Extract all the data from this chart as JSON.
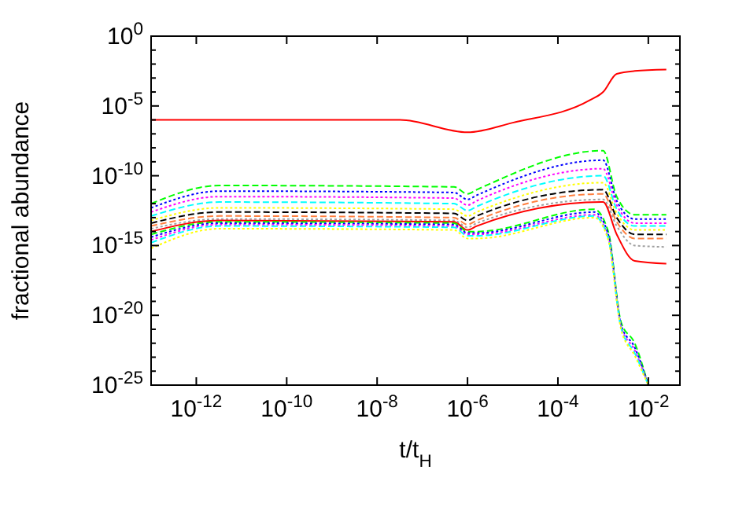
{
  "chart_data": {
    "type": "line",
    "xlabel": "t/t$_{H}$",
    "ylabel": "fractional abundance",
    "log": "xy",
    "grid": false,
    "xlim": [
      1e-13,
      0.05
    ],
    "ylim": [
      1e-25,
      1
    ],
    "xticks": [
      {
        "value": 1e-12,
        "label": "10$^{-12}$"
      },
      {
        "value": 1e-10,
        "label": "10$^{-10}$"
      },
      {
        "value": 1e-08,
        "label": "10$^{-8}$"
      },
      {
        "value": 1e-06,
        "label": "10$^{-6}$"
      },
      {
        "value": 0.0001,
        "label": "10$^{-4}$"
      },
      {
        "value": 0.01,
        "label": "10$^{-2}$"
      }
    ],
    "yticks": [
      {
        "value": 1e-25,
        "label": "10$^{-25}$"
      },
      {
        "value": 1e-24,
        "label": null
      },
      {
        "value": 1e-23,
        "label": null
      },
      {
        "value": 1e-22,
        "label": null
      },
      {
        "value": 1e-21,
        "label": null
      },
      {
        "value": 1e-20,
        "label": "10$^{-20}$"
      },
      {
        "value": 1e-19,
        "label": null
      },
      {
        "value": 1e-18,
        "label": null
      },
      {
        "value": 1e-17,
        "label": null
      },
      {
        "value": 1e-16,
        "label": null
      },
      {
        "value": 1e-15,
        "label": "10$^{-15}$"
      },
      {
        "value": 1e-14,
        "label": null
      },
      {
        "value": 1e-13,
        "label": null
      },
      {
        "value": 1e-12,
        "label": null
      },
      {
        "value": 1e-11,
        "label": null
      },
      {
        "value": 1e-10,
        "label": "10$^{-10}$"
      },
      {
        "value": 1e-09,
        "label": null
      },
      {
        "value": 1e-08,
        "label": null
      },
      {
        "value": 1e-07,
        "label": null
      },
      {
        "value": 1e-06,
        "label": null
      },
      {
        "value": 1e-05,
        "label": "10$^{-5}$"
      },
      {
        "value": 0.0001,
        "label": null
      },
      {
        "value": 0.001,
        "label": null
      },
      {
        "value": 0.01,
        "label": null
      },
      {
        "value": 0.1,
        "label": null
      },
      {
        "value": 1,
        "label": "10$^{0}$"
      }
    ],
    "series": [
      {
        "color": "#ff0000",
        "line_style": "solid",
        "x": [
          1e-13,
          3.2e-08,
          1e-06,
          1e-05,
          0.0005,
          0.001,
          0.002,
          0.005,
          0.025
        ],
        "values": [
          1e-06,
          1e-06,
          1.3e-07,
          6.3e-07,
          2.5e-05,
          0.0001,
          0.002,
          0.0032,
          0.004
        ]
      },
      {
        "color": "#00ff00",
        "line_style": "dashed",
        "x": [
          1e-13,
          3.2e-12,
          5e-07,
          1e-06,
          1.6e-06,
          0.001,
          0.002,
          0.005,
          0.025
        ],
        "values": [
          1e-12,
          2e-11,
          1.6e-11,
          5e-12,
          1e-11,
          6.3e-09,
          3.2e-12,
          1.6e-13,
          1.6e-13
        ]
      },
      {
        "color": "#0000ff",
        "line_style": "dotted",
        "x": [
          1e-13,
          3.2e-12,
          5e-07,
          1e-06,
          1.6e-06,
          0.001,
          0.002,
          0.005,
          0.025
        ],
        "values": [
          5e-13,
          7.9e-12,
          6.3e-12,
          2e-12,
          4e-12,
          1.3e-09,
          1.6e-12,
          7.9e-14,
          7.9e-14
        ]
      },
      {
        "color": "#ff00ff",
        "line_style": "dotted",
        "x": [
          1e-13,
          3.2e-12,
          5e-07,
          1e-06,
          1.6e-06,
          0.001,
          0.002,
          0.005,
          0.025
        ],
        "values": [
          2.5e-13,
          3.2e-12,
          2.5e-12,
          7.9e-13,
          1.6e-12,
          3.2e-10,
          7.9e-13,
          4e-14,
          4e-14
        ]
      },
      {
        "color": "#00ffff",
        "line_style": "dashed",
        "x": [
          1e-13,
          3.2e-12,
          5e-07,
          1e-06,
          1.6e-06,
          0.001,
          0.002,
          0.005,
          0.025
        ],
        "values": [
          1.3e-13,
          1.3e-12,
          1e-12,
          3.2e-13,
          6.3e-13,
          1e-10,
          4e-13,
          2.5e-14,
          2.5e-14
        ]
      },
      {
        "color": "#ffff00",
        "line_style": "dotted",
        "x": [
          1e-13,
          3.2e-12,
          5e-07,
          1e-06,
          1.6e-06,
          0.001,
          0.002,
          0.005,
          0.025
        ],
        "values": [
          6.3e-14,
          5e-13,
          4e-13,
          1.3e-13,
          2.5e-13,
          3.2e-11,
          2e-13,
          1.3e-14,
          1.3e-14
        ]
      },
      {
        "color": "#000000",
        "line_style": "dashed",
        "x": [
          1e-13,
          3.2e-12,
          5e-07,
          1e-06,
          1.6e-06,
          0.001,
          0.002,
          0.005,
          0.025
        ],
        "values": [
          4e-14,
          2.5e-13,
          2e-13,
          6.3e-14,
          1.3e-13,
          1e-11,
          1e-13,
          6.3e-15,
          6.3e-15
        ]
      },
      {
        "color": "#ff8040",
        "line_style": "dashed",
        "x": [
          1e-13,
          3.2e-12,
          5e-07,
          1e-06,
          1.6e-06,
          0.001,
          0.002,
          0.005,
          0.025
        ],
        "values": [
          2.5e-14,
          1.3e-13,
          1e-13,
          3.2e-14,
          6.3e-14,
          5e-12,
          5e-14,
          3.2e-15,
          3.2e-15
        ]
      },
      {
        "color": "#a0a0a0",
        "line_style": "dotted",
        "x": [
          1e-13,
          3.2e-12,
          5e-07,
          1e-06,
          1.6e-06,
          0.001,
          0.002,
          0.005,
          0.025
        ],
        "values": [
          1.6e-14,
          7.9e-14,
          6.3e-14,
          2e-14,
          4e-14,
          2e-12,
          2.5e-14,
          1e-15,
          7.9e-16
        ]
      },
      {
        "color": "#ff0000",
        "line_style": "solid",
        "x": [
          1e-13,
          3.2e-12,
          5e-07,
          1e-06,
          1.6e-06,
          0.001,
          0.002,
          0.005,
          0.025
        ],
        "values": [
          1e-14,
          6.3e-14,
          5e-14,
          1.3e-14,
          2.5e-14,
          1.3e-12,
          6.3e-15,
          7.9e-17,
          5e-17
        ]
      },
      {
        "color": "#00ff00",
        "line_style": "dashed",
        "x": [
          1e-13,
          3.2e-12,
          5e-07,
          1e-06,
          1.6e-06,
          0.00063,
          0.0013,
          0.0025,
          0.005,
          0.01
        ],
        "values": [
          6.3e-15,
          5e-14,
          4e-14,
          1e-14,
          1e-14,
          4e-13,
          1e-14,
          3.2e-21,
          1e-22,
          1e-25
        ]
      },
      {
        "color": "#0000ff",
        "line_style": "dotted",
        "x": [
          1e-13,
          3.2e-12,
          5e-07,
          1e-06,
          1.6e-06,
          0.00063,
          0.0013,
          0.0025,
          0.005,
          0.01
        ],
        "values": [
          4e-15,
          4e-14,
          3.2e-14,
          7.9e-15,
          7.9e-15,
          2.5e-13,
          6.3e-15,
          2e-21,
          5e-23,
          1e-25
        ]
      },
      {
        "color": "#ff00ff",
        "line_style": "dotted",
        "x": [
          1e-13,
          3.2e-12,
          5e-07,
          1e-06,
          1.6e-06,
          0.00063,
          0.0013,
          0.0025,
          0.005,
          0.01
        ],
        "values": [
          2.5e-15,
          3.2e-14,
          2.5e-14,
          6.3e-15,
          6.3e-15,
          1.6e-13,
          4e-15,
          1.6e-21,
          3.2e-23,
          1e-25
        ]
      },
      {
        "color": "#00ffff",
        "line_style": "dashed",
        "x": [
          1e-13,
          3.2e-12,
          5e-07,
          1e-06,
          1.6e-06,
          0.00063,
          0.0013,
          0.0025,
          0.005,
          0.01
        ],
        "values": [
          1.6e-15,
          2.5e-14,
          2e-14,
          5e-15,
          5e-15,
          1.3e-13,
          3.2e-15,
          1.3e-21,
          2e-23,
          1e-25
        ]
      },
      {
        "color": "#ffff00",
        "line_style": "dotted",
        "x": [
          1e-13,
          3.2e-12,
          5e-07,
          1e-06,
          1.6e-06,
          0.00063,
          0.0013,
          0.0025,
          0.005,
          0.01
        ],
        "values": [
          6.3e-16,
          1.6e-14,
          1.3e-14,
          3.2e-15,
          3.2e-15,
          1e-13,
          2.5e-15,
          1e-21,
          1.3e-23,
          1e-25
        ]
      }
    ]
  }
}
